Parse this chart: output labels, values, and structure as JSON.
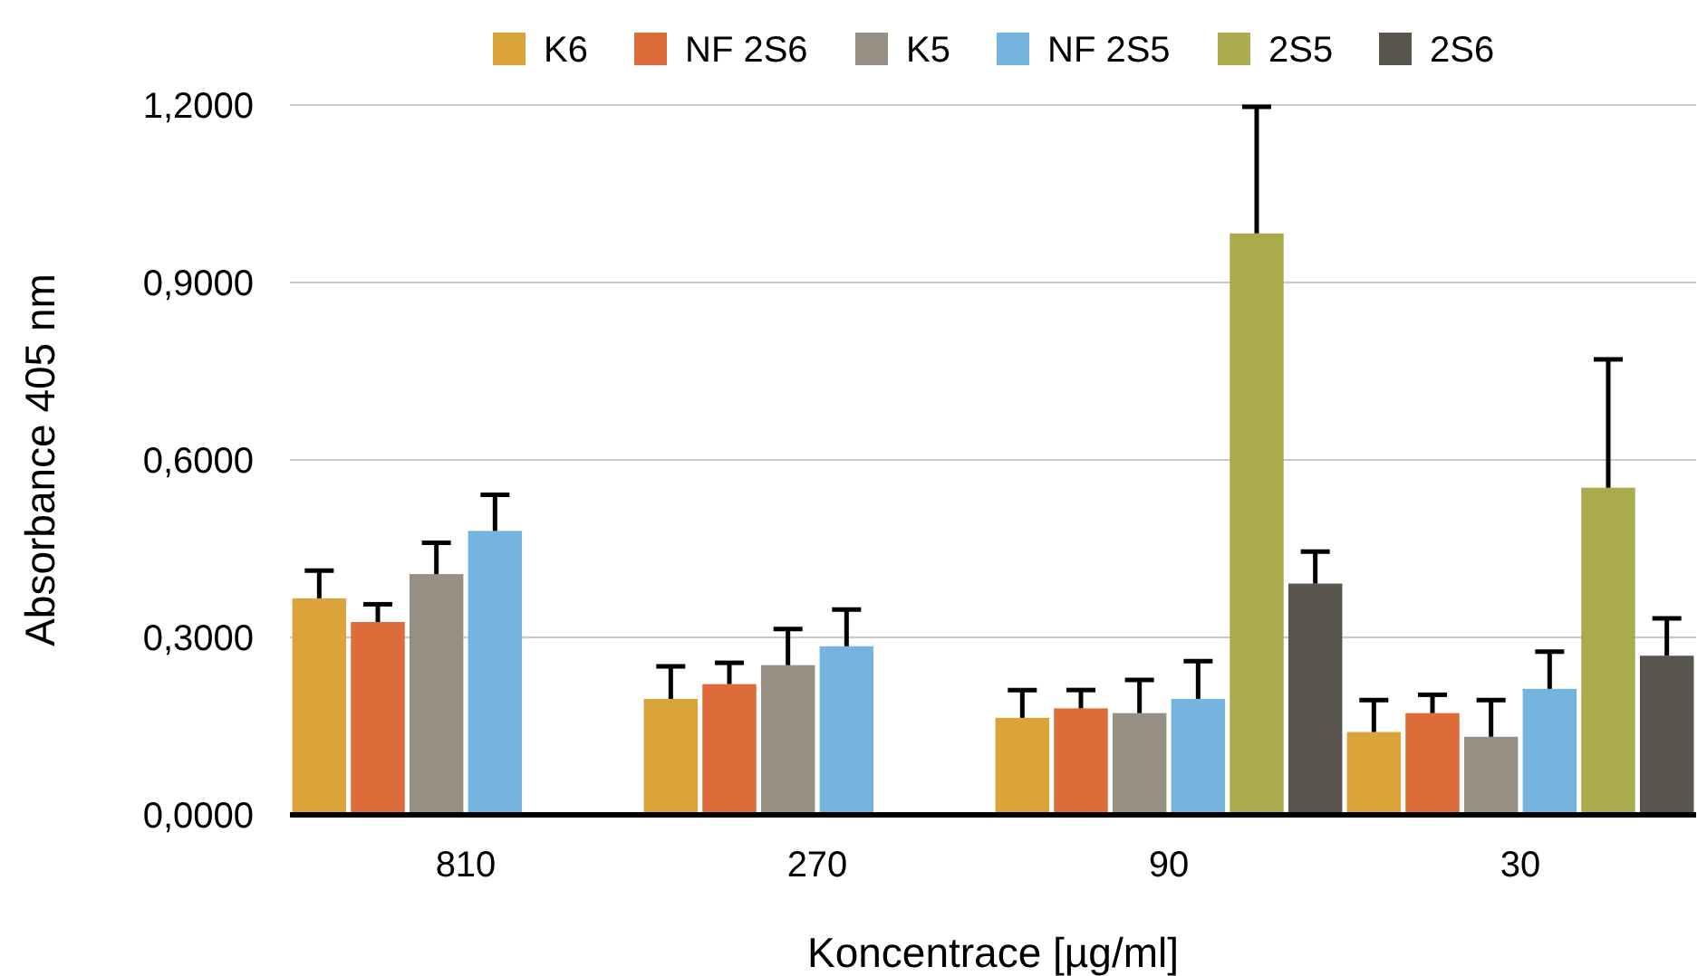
{
  "chart_data": {
    "type": "bar",
    "xlabel": "Koncentrace [µg/ml]",
    "ylabel": "Absorbance 405 nm",
    "categories": [
      "810",
      "270",
      "90",
      "30"
    ],
    "series": [
      {
        "name": "K6",
        "color": "#dba43a",
        "values": [
          0.366,
          0.196,
          0.164,
          0.14
        ],
        "errors": [
          [
            0.366,
            0.413
          ],
          [
            0.196,
            0.251
          ],
          [
            0.164,
            0.211
          ],
          [
            0.14,
            0.194
          ]
        ]
      },
      {
        "name": "NF 2S6",
        "color": "#dd6c3a",
        "values": [
          0.326,
          0.221,
          0.18,
          0.172
        ],
        "errors": [
          [
            0.326,
            0.356
          ],
          [
            0.221,
            0.257
          ],
          [
            0.18,
            0.211
          ],
          [
            0.172,
            0.203
          ]
        ]
      },
      {
        "name": "K5",
        "color": "#978f84",
        "values": [
          0.407,
          0.253,
          0.172,
          0.132
        ],
        "errors": [
          [
            0.407,
            0.46
          ],
          [
            0.253,
            0.314
          ],
          [
            0.172,
            0.228
          ],
          [
            0.132,
            0.194
          ]
        ]
      },
      {
        "name": "NF 2S5",
        "color": "#76b4e0",
        "values": [
          0.48,
          0.285,
          0.196,
          0.213
        ],
        "errors": [
          [
            0.48,
            0.541
          ],
          [
            0.285,
            0.347
          ],
          [
            0.196,
            0.26
          ],
          [
            0.213,
            0.276
          ]
        ]
      },
      {
        "name": "2S5",
        "color": "#abab4d",
        "values": [
          null,
          null,
          0.983,
          0.553
        ],
        "errors": [
          null,
          null,
          [
            0.983,
            1.197
          ],
          [
            0.553,
            0.77
          ]
        ]
      },
      {
        "name": "2S6",
        "color": "#58554d",
        "values": [
          null,
          null,
          0.391,
          0.269
        ],
        "errors": [
          null,
          null,
          [
            0.391,
            0.445
          ],
          [
            0.269,
            0.332
          ]
        ]
      }
    ],
    "ylim": [
      0,
      1.2
    ],
    "yticks": [
      {
        "value": 0,
        "label": "0,0000"
      },
      {
        "value": 0.3,
        "label": "0,3000"
      },
      {
        "value": 0.6,
        "label": "0,6000"
      },
      {
        "value": 0.9,
        "label": "0,9000"
      },
      {
        "value": 1.2,
        "label": "1,2000"
      }
    ],
    "grid": "y",
    "legend": "top"
  }
}
